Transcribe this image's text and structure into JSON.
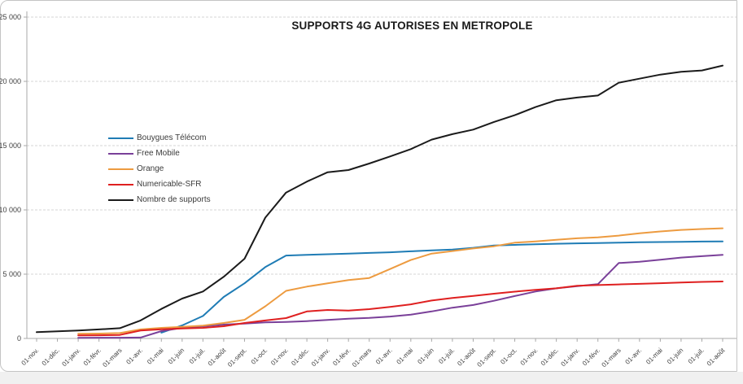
{
  "title": "SUPPORTS 4G AUTORISES EN METROPOLE",
  "chart_data": {
    "type": "line",
    "title": "SUPPORTS 4G AUTORISES EN METROPOLE",
    "xlabel": "",
    "ylabel": "",
    "ylim": [
      0,
      25000
    ],
    "grid": "horizontal-dashed",
    "legend_position": "middle-left",
    "y_ticks": [
      0,
      5000,
      10000,
      15000,
      20000,
      25000
    ],
    "y_tick_labels": [
      "0",
      "5 000",
      "10 000",
      "15 000",
      "20 000",
      "25 000"
    ],
    "x_labels": [
      "01-nov.",
      "01-déc.",
      "01-janv.",
      "01-févr.",
      "01-mars",
      "01-avr.",
      "01-mai",
      "01-juin",
      "01-juil.",
      "01-août",
      "01-sept.",
      "01-oct.",
      "01-nov.",
      "01-déc.",
      "01-janv.",
      "01-févr.",
      "01-mars",
      "01-avr.",
      "01-mai",
      "01-juin",
      "01-juil.",
      "01-août",
      "01-sept.",
      "01-oct.",
      "01-nov.",
      "01-déc.",
      "01-janv.",
      "01-févr.",
      "01-mars",
      "01-avr.",
      "01-mai",
      "01-juin",
      "01-juil.",
      "01-août"
    ],
    "series": [
      {
        "name": "Bouygues Télécom",
        "color": "#1f7cb5",
        "values": [
          null,
          null,
          null,
          null,
          null,
          null,
          450,
          1010,
          1750,
          3230,
          4290,
          5550,
          6450,
          6500,
          6550,
          6600,
          6650,
          6700,
          6780,
          6850,
          6920,
          7050,
          7230,
          7280,
          7330,
          7370,
          7400,
          7420,
          7450,
          7480,
          7500,
          7520,
          7540,
          7550
        ]
      },
      {
        "name": "Free Mobile",
        "color": "#7a4099",
        "values": [
          null,
          null,
          50,
          55,
          60,
          70,
          570,
          820,
          950,
          1075,
          1160,
          1245,
          1285,
          1350,
          1435,
          1540,
          1600,
          1700,
          1850,
          2100,
          2390,
          2600,
          2930,
          3300,
          3650,
          3900,
          4070,
          4220,
          5870,
          5970,
          6120,
          6290,
          6400,
          6500
        ]
      },
      {
        "name": "Orange",
        "color": "#ed9b40",
        "values": [
          null,
          null,
          360,
          380,
          420,
          700,
          820,
          900,
          1000,
          1200,
          1450,
          2500,
          3700,
          4030,
          4285,
          4540,
          4705,
          5400,
          6100,
          6600,
          6800,
          7000,
          7170,
          7450,
          7550,
          7680,
          7790,
          7860,
          8000,
          8180,
          8320,
          8440,
          8510,
          8570
        ]
      },
      {
        "name": "Numericable-SFR",
        "color": "#df2020",
        "values": [
          null,
          null,
          235,
          245,
          270,
          615,
          715,
          780,
          825,
          950,
          1200,
          1400,
          1580,
          2100,
          2215,
          2170,
          2280,
          2450,
          2650,
          2950,
          3150,
          3310,
          3480,
          3640,
          3780,
          3900,
          4100,
          4150,
          4200,
          4250,
          4300,
          4350,
          4400,
          4430
        ]
      },
      {
        "name": "Nombre de supports",
        "color": "#1b1b1b",
        "values": [
          490,
          550,
          620,
          700,
          800,
          1400,
          2300,
          3100,
          3650,
          4800,
          6200,
          9400,
          11350,
          12200,
          12930,
          13100,
          13610,
          14160,
          14730,
          15470,
          15890,
          16250,
          16840,
          17365,
          18000,
          18530,
          18740,
          18900,
          19890,
          20210,
          20525,
          20740,
          20845,
          21225
        ]
      }
    ]
  }
}
